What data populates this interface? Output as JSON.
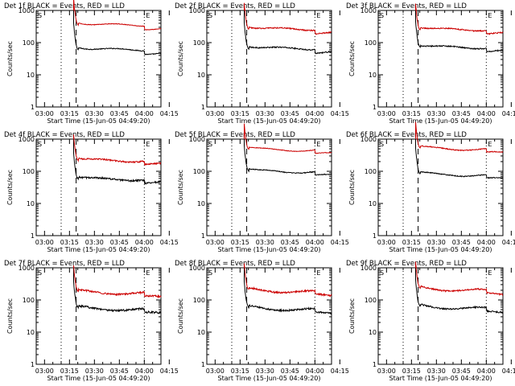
{
  "figure": {
    "common": {
      "ylabel": "Counts/sec",
      "xlabel": "Start Time (15-Jun-05 04:49:20)",
      "xticks": [
        "03:00",
        "03:15",
        "03:30",
        "03:45",
        "04:00",
        "04:15"
      ],
      "yticks": [
        "1",
        "10",
        "100",
        "1000"
      ],
      "marker_start": "S",
      "marker_end": "E",
      "colors": {
        "events": "#000000",
        "lld": "#cc0000"
      },
      "ylim": [
        1,
        1000
      ],
      "xlim_minutes": [
        0,
        75
      ]
    },
    "chart_data": [
      {
        "type": "line",
        "title": "Det 1f BLACK = Events, RED = LLD",
        "series": [
          {
            "name": "Events",
            "level": 60,
            "noise": 0.03
          },
          {
            "name": "LLD",
            "level": 350,
            "noise": 0.02
          }
        ]
      },
      {
        "type": "line",
        "title": "Det 2f BLACK = Events, RED = LLD",
        "series": [
          {
            "name": "Events",
            "level": 65,
            "noise": 0.04
          },
          {
            "name": "LLD",
            "level": 260,
            "noise": 0.04
          }
        ]
      },
      {
        "type": "line",
        "title": "Det 3f BLACK = Events, RED = LLD",
        "series": [
          {
            "name": "Events",
            "level": 70,
            "noise": 0.04
          },
          {
            "name": "LLD",
            "level": 250,
            "noise": 0.04
          }
        ]
      },
      {
        "type": "line",
        "title": "Det 4f BLACK = Events, RED = LLD",
        "series": [
          {
            "name": "Events",
            "level": 55,
            "noise": 0.06
          },
          {
            "name": "LLD",
            "level": 210,
            "noise": 0.05
          }
        ]
      },
      {
        "type": "line",
        "title": "Det 5f BLACK = Events, RED = LLD",
        "series": [
          {
            "name": "Events",
            "level": 95,
            "noise": 0.03
          },
          {
            "name": "LLD",
            "level": 450,
            "noise": 0.02
          }
        ]
      },
      {
        "type": "line",
        "title": "Det 6f BLACK = Events, RED = LLD",
        "series": [
          {
            "name": "Events",
            "level": 75,
            "noise": 0.03
          },
          {
            "name": "LLD",
            "level": 480,
            "noise": 0.03
          }
        ]
      },
      {
        "type": "line",
        "title": "Det 7f BLACK = Events, RED = LLD",
        "series": [
          {
            "name": "Events",
            "level": 50,
            "noise": 0.07
          },
          {
            "name": "LLD",
            "level": 160,
            "noise": 0.06
          }
        ]
      },
      {
        "type": "line",
        "title": "Det 8f BLACK = Events, RED = LLD",
        "series": [
          {
            "name": "Events",
            "level": 50,
            "noise": 0.06
          },
          {
            "name": "LLD",
            "level": 180,
            "noise": 0.06
          }
        ]
      },
      {
        "type": "line",
        "title": "Det 9f BLACK = Events, RED = LLD",
        "series": [
          {
            "name": "Events",
            "level": 55,
            "noise": 0.05
          },
          {
            "name": "LLD",
            "level": 200,
            "noise": 0.05
          }
        ]
      }
    ]
  }
}
